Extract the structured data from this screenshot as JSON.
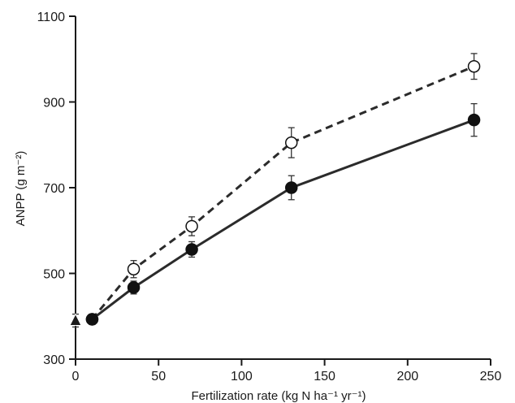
{
  "chart_data": {
    "type": "line",
    "title": "",
    "xlabel": "Fertilization rate (kg N ha⁻¹ yr⁻¹)",
    "ylabel": "ANPP (g m⁻²)",
    "xlim": [
      0,
      250
    ],
    "ylim": [
      300,
      1100
    ],
    "xticks": [
      0,
      50,
      100,
      150,
      200,
      250
    ],
    "yticks": [
      300,
      500,
      700,
      900,
      1100
    ],
    "grid": false,
    "legend": "none",
    "control": {
      "marker": "triangle-filled",
      "x": 0,
      "y": 390,
      "err": 15
    },
    "series": [
      {
        "marker": "circle-open",
        "line_style": "dashed",
        "color": "#2b2b2b",
        "x": [
          10,
          35,
          70,
          130,
          240
        ],
        "y": [
          393,
          510,
          610,
          805,
          983
        ],
        "err": [
          12,
          20,
          22,
          35,
          30
        ]
      },
      {
        "marker": "circle-filled",
        "line_style": "solid",
        "color": "#2b2b2b",
        "x": [
          10,
          35,
          70,
          130,
          240
        ],
        "y": [
          393,
          467,
          556,
          700,
          858
        ],
        "err": [
          12,
          15,
          18,
          28,
          38
        ]
      }
    ]
  }
}
